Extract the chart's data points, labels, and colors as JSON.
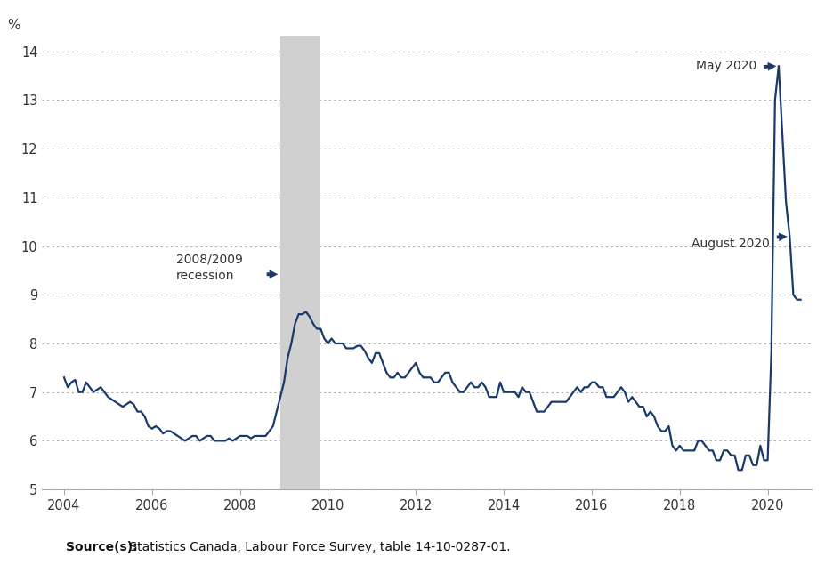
{
  "title": "",
  "ylabel": "%",
  "xlabel": "",
  "background_color": "#ffffff",
  "line_color": "#1a3a6b",
  "recession_color": "#d0d0d0",
  "recession_start": 2008.917,
  "recession_end": 2009.833,
  "ylim": [
    5,
    14.3
  ],
  "yticks": [
    5,
    6,
    7,
    8,
    9,
    10,
    11,
    12,
    13,
    14
  ],
  "xlim": [
    2003.5,
    2021.0
  ],
  "xticks": [
    2004,
    2006,
    2008,
    2010,
    2012,
    2014,
    2016,
    2018,
    2020
  ],
  "source_text": " Statistics Canada, Labour Force Survey, table 14-10-0287-01.",
  "source_bold": "Source(s):",
  "annotation_recession_text": "2008/2009\nrecession",
  "annotation_aug2020_text": "August 2020",
  "annotation_may2020_text": "May 2020",
  "data": [
    [
      2004.0,
      7.3
    ],
    [
      2004.083,
      7.1
    ],
    [
      2004.167,
      7.2
    ],
    [
      2004.25,
      7.25
    ],
    [
      2004.333,
      7.0
    ],
    [
      2004.417,
      7.0
    ],
    [
      2004.5,
      7.2
    ],
    [
      2004.583,
      7.1
    ],
    [
      2004.667,
      7.0
    ],
    [
      2004.75,
      7.05
    ],
    [
      2004.833,
      7.1
    ],
    [
      2004.917,
      7.0
    ],
    [
      2005.0,
      6.9
    ],
    [
      2005.083,
      6.85
    ],
    [
      2005.167,
      6.8
    ],
    [
      2005.25,
      6.75
    ],
    [
      2005.333,
      6.7
    ],
    [
      2005.417,
      6.75
    ],
    [
      2005.5,
      6.8
    ],
    [
      2005.583,
      6.75
    ],
    [
      2005.667,
      6.6
    ],
    [
      2005.75,
      6.6
    ],
    [
      2005.833,
      6.5
    ],
    [
      2005.917,
      6.3
    ],
    [
      2006.0,
      6.25
    ],
    [
      2006.083,
      6.3
    ],
    [
      2006.167,
      6.25
    ],
    [
      2006.25,
      6.15
    ],
    [
      2006.333,
      6.2
    ],
    [
      2006.417,
      6.2
    ],
    [
      2006.5,
      6.15
    ],
    [
      2006.583,
      6.1
    ],
    [
      2006.667,
      6.05
    ],
    [
      2006.75,
      6.0
    ],
    [
      2006.833,
      6.05
    ],
    [
      2006.917,
      6.1
    ],
    [
      2007.0,
      6.1
    ],
    [
      2007.083,
      6.0
    ],
    [
      2007.167,
      6.05
    ],
    [
      2007.25,
      6.1
    ],
    [
      2007.333,
      6.1
    ],
    [
      2007.417,
      6.0
    ],
    [
      2007.5,
      6.0
    ],
    [
      2007.583,
      6.0
    ],
    [
      2007.667,
      6.0
    ],
    [
      2007.75,
      6.05
    ],
    [
      2007.833,
      6.0
    ],
    [
      2007.917,
      6.05
    ],
    [
      2008.0,
      6.1
    ],
    [
      2008.083,
      6.1
    ],
    [
      2008.167,
      6.1
    ],
    [
      2008.25,
      6.05
    ],
    [
      2008.333,
      6.1
    ],
    [
      2008.417,
      6.1
    ],
    [
      2008.5,
      6.1
    ],
    [
      2008.583,
      6.1
    ],
    [
      2008.667,
      6.2
    ],
    [
      2008.75,
      6.3
    ],
    [
      2008.833,
      6.6
    ],
    [
      2008.917,
      6.9
    ],
    [
      2009.0,
      7.2
    ],
    [
      2009.083,
      7.7
    ],
    [
      2009.167,
      8.0
    ],
    [
      2009.25,
      8.4
    ],
    [
      2009.333,
      8.6
    ],
    [
      2009.417,
      8.6
    ],
    [
      2009.5,
      8.65
    ],
    [
      2009.583,
      8.55
    ],
    [
      2009.667,
      8.4
    ],
    [
      2009.75,
      8.3
    ],
    [
      2009.833,
      8.3
    ],
    [
      2009.917,
      8.1
    ],
    [
      2010.0,
      8.0
    ],
    [
      2010.083,
      8.1
    ],
    [
      2010.167,
      8.0
    ],
    [
      2010.25,
      8.0
    ],
    [
      2010.333,
      8.0
    ],
    [
      2010.417,
      7.9
    ],
    [
      2010.5,
      7.9
    ],
    [
      2010.583,
      7.9
    ],
    [
      2010.667,
      7.95
    ],
    [
      2010.75,
      7.95
    ],
    [
      2010.833,
      7.85
    ],
    [
      2010.917,
      7.7
    ],
    [
      2011.0,
      7.6
    ],
    [
      2011.083,
      7.8
    ],
    [
      2011.167,
      7.8
    ],
    [
      2011.25,
      7.6
    ],
    [
      2011.333,
      7.4
    ],
    [
      2011.417,
      7.3
    ],
    [
      2011.5,
      7.3
    ],
    [
      2011.583,
      7.4
    ],
    [
      2011.667,
      7.3
    ],
    [
      2011.75,
      7.3
    ],
    [
      2011.833,
      7.4
    ],
    [
      2011.917,
      7.5
    ],
    [
      2012.0,
      7.6
    ],
    [
      2012.083,
      7.4
    ],
    [
      2012.167,
      7.3
    ],
    [
      2012.25,
      7.3
    ],
    [
      2012.333,
      7.3
    ],
    [
      2012.417,
      7.2
    ],
    [
      2012.5,
      7.2
    ],
    [
      2012.583,
      7.3
    ],
    [
      2012.667,
      7.4
    ],
    [
      2012.75,
      7.4
    ],
    [
      2012.833,
      7.2
    ],
    [
      2012.917,
      7.1
    ],
    [
      2013.0,
      7.0
    ],
    [
      2013.083,
      7.0
    ],
    [
      2013.167,
      7.1
    ],
    [
      2013.25,
      7.2
    ],
    [
      2013.333,
      7.1
    ],
    [
      2013.417,
      7.1
    ],
    [
      2013.5,
      7.2
    ],
    [
      2013.583,
      7.1
    ],
    [
      2013.667,
      6.9
    ],
    [
      2013.75,
      6.9
    ],
    [
      2013.833,
      6.9
    ],
    [
      2013.917,
      7.2
    ],
    [
      2014.0,
      7.0
    ],
    [
      2014.083,
      7.0
    ],
    [
      2014.167,
      7.0
    ],
    [
      2014.25,
      7.0
    ],
    [
      2014.333,
      6.9
    ],
    [
      2014.417,
      7.1
    ],
    [
      2014.5,
      7.0
    ],
    [
      2014.583,
      7.0
    ],
    [
      2014.667,
      6.8
    ],
    [
      2014.75,
      6.6
    ],
    [
      2014.833,
      6.6
    ],
    [
      2014.917,
      6.6
    ],
    [
      2015.0,
      6.7
    ],
    [
      2015.083,
      6.8
    ],
    [
      2015.167,
      6.8
    ],
    [
      2015.25,
      6.8
    ],
    [
      2015.333,
      6.8
    ],
    [
      2015.417,
      6.8
    ],
    [
      2015.5,
      6.9
    ],
    [
      2015.583,
      7.0
    ],
    [
      2015.667,
      7.1
    ],
    [
      2015.75,
      7.0
    ],
    [
      2015.833,
      7.1
    ],
    [
      2015.917,
      7.1
    ],
    [
      2016.0,
      7.2
    ],
    [
      2016.083,
      7.2
    ],
    [
      2016.167,
      7.1
    ],
    [
      2016.25,
      7.1
    ],
    [
      2016.333,
      6.9
    ],
    [
      2016.417,
      6.9
    ],
    [
      2016.5,
      6.9
    ],
    [
      2016.583,
      7.0
    ],
    [
      2016.667,
      7.1
    ],
    [
      2016.75,
      7.0
    ],
    [
      2016.833,
      6.8
    ],
    [
      2016.917,
      6.9
    ],
    [
      2017.0,
      6.8
    ],
    [
      2017.083,
      6.7
    ],
    [
      2017.167,
      6.7
    ],
    [
      2017.25,
      6.5
    ],
    [
      2017.333,
      6.6
    ],
    [
      2017.417,
      6.5
    ],
    [
      2017.5,
      6.3
    ],
    [
      2017.583,
      6.2
    ],
    [
      2017.667,
      6.2
    ],
    [
      2017.75,
      6.3
    ],
    [
      2017.833,
      5.9
    ],
    [
      2017.917,
      5.8
    ],
    [
      2018.0,
      5.9
    ],
    [
      2018.083,
      5.8
    ],
    [
      2018.167,
      5.8
    ],
    [
      2018.25,
      5.8
    ],
    [
      2018.333,
      5.8
    ],
    [
      2018.417,
      6.0
    ],
    [
      2018.5,
      6.0
    ],
    [
      2018.583,
      5.9
    ],
    [
      2018.667,
      5.8
    ],
    [
      2018.75,
      5.8
    ],
    [
      2018.833,
      5.6
    ],
    [
      2018.917,
      5.6
    ],
    [
      2019.0,
      5.8
    ],
    [
      2019.083,
      5.8
    ],
    [
      2019.167,
      5.7
    ],
    [
      2019.25,
      5.7
    ],
    [
      2019.333,
      5.4
    ],
    [
      2019.417,
      5.4
    ],
    [
      2019.5,
      5.7
    ],
    [
      2019.583,
      5.7
    ],
    [
      2019.667,
      5.5
    ],
    [
      2019.75,
      5.5
    ],
    [
      2019.833,
      5.9
    ],
    [
      2019.917,
      5.6
    ],
    [
      2020.0,
      5.6
    ],
    [
      2020.083,
      7.8
    ],
    [
      2020.167,
      13.0
    ],
    [
      2020.25,
      13.7
    ],
    [
      2020.333,
      12.3
    ],
    [
      2020.417,
      10.9
    ],
    [
      2020.5,
      10.2
    ],
    [
      2020.583,
      9.0
    ],
    [
      2020.667,
      8.9
    ],
    [
      2020.75,
      8.9
    ]
  ]
}
